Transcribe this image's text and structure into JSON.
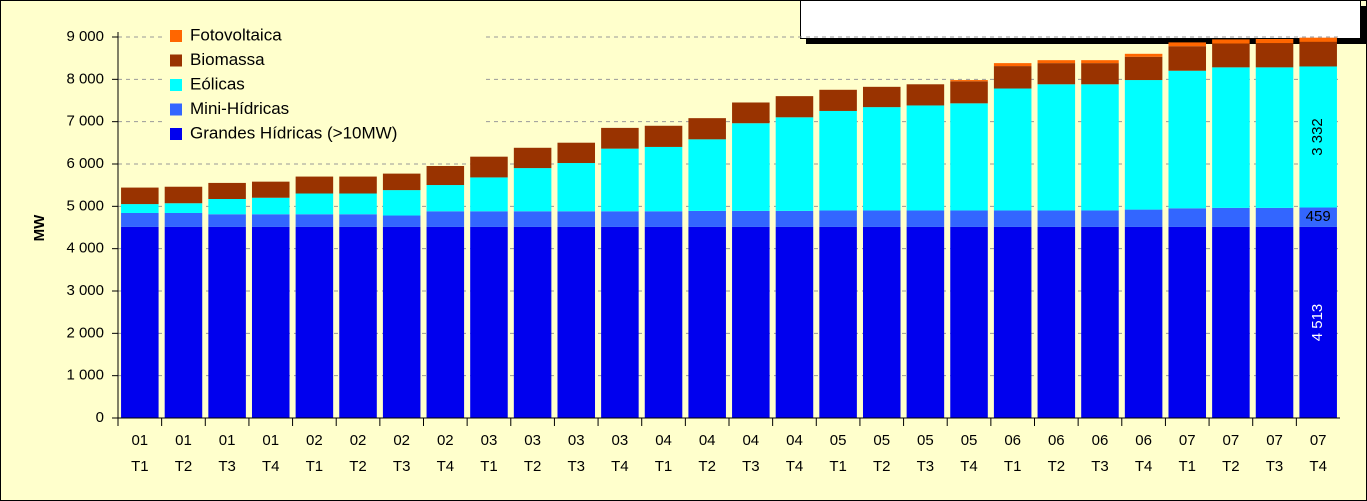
{
  "chart_data": {
    "type": "bar",
    "stacked": true,
    "ylabel": "MW",
    "categories": [
      [
        "01",
        "T1"
      ],
      [
        "01",
        "T2"
      ],
      [
        "01",
        "T3"
      ],
      [
        "01",
        "T4"
      ],
      [
        "02",
        "T1"
      ],
      [
        "02",
        "T2"
      ],
      [
        "02",
        "T3"
      ],
      [
        "02",
        "T4"
      ],
      [
        "03",
        "T1"
      ],
      [
        "03",
        "T2"
      ],
      [
        "03",
        "T3"
      ],
      [
        "03",
        "T4"
      ],
      [
        "04",
        "T1"
      ],
      [
        "04",
        "T2"
      ],
      [
        "04",
        "T3"
      ],
      [
        "04",
        "T4"
      ],
      [
        "05",
        "T1"
      ],
      [
        "05",
        "T2"
      ],
      [
        "05",
        "T3"
      ],
      [
        "05",
        "T4"
      ],
      [
        "06",
        "T1"
      ],
      [
        "06",
        "T2"
      ],
      [
        "06",
        "T3"
      ],
      [
        "06",
        "T4"
      ],
      [
        "07",
        "T1"
      ],
      [
        "07",
        "T2"
      ],
      [
        "07",
        "T3"
      ],
      [
        "07",
        "T4"
      ]
    ],
    "series": [
      {
        "name": "Grandes Hídricas (>10MW)",
        "color": "#0000ee",
        "values": [
          4513,
          4513,
          4513,
          4513,
          4513,
          4513,
          4513,
          4513,
          4513,
          4513,
          4513,
          4513,
          4513,
          4513,
          4513,
          4513,
          4513,
          4513,
          4513,
          4513,
          4513,
          4513,
          4513,
          4513,
          4513,
          4513,
          4513,
          4513
        ],
        "value_labels": [
          null,
          null,
          null,
          null,
          null,
          null,
          null,
          null,
          null,
          null,
          null,
          null,
          null,
          null,
          null,
          null,
          null,
          null,
          null,
          null,
          null,
          null,
          null,
          null,
          null,
          null,
          null,
          "4 513"
        ]
      },
      {
        "name": "Mini-Hídricas",
        "color": "#3366ff",
        "values": [
          330,
          330,
          300,
          300,
          300,
          300,
          270,
          370,
          370,
          370,
          370,
          370,
          370,
          380,
          380,
          380,
          390,
          390,
          390,
          390,
          390,
          390,
          390,
          410,
          440,
          450,
          450,
          459
        ],
        "value_labels": [
          null,
          null,
          null,
          null,
          null,
          null,
          null,
          null,
          null,
          null,
          null,
          null,
          null,
          null,
          null,
          null,
          null,
          null,
          null,
          null,
          null,
          null,
          null,
          null,
          null,
          null,
          null,
          "459"
        ]
      },
      {
        "name": "Eólicas",
        "color": "#00ffff",
        "values": [
          210,
          230,
          360,
          390,
          490,
          490,
          600,
          620,
          800,
          1020,
          1140,
          1480,
          1520,
          1690,
          2070,
          2210,
          2350,
          2440,
          2480,
          2530,
          2880,
          2980,
          2980,
          3060,
          3250,
          3320,
          3320,
          3332
        ],
        "value_labels": [
          null,
          null,
          null,
          null,
          null,
          null,
          null,
          null,
          null,
          null,
          null,
          null,
          null,
          null,
          null,
          null,
          null,
          null,
          null,
          null,
          null,
          null,
          null,
          null,
          null,
          null,
          null,
          "3 332"
        ]
      },
      {
        "name": "Biomassa",
        "color": "#993300",
        "values": [
          390,
          390,
          380,
          380,
          400,
          400,
          390,
          450,
          490,
          480,
          480,
          490,
          500,
          500,
          490,
          500,
          500,
          480,
          500,
          520,
          530,
          500,
          500,
          550,
          580,
          560,
          570,
          580
        ]
      },
      {
        "name": "Fotovoltaica",
        "color": "#ff6600",
        "values": [
          0,
          0,
          0,
          0,
          0,
          0,
          0,
          0,
          0,
          0,
          0,
          0,
          0,
          0,
          0,
          0,
          0,
          0,
          0,
          30,
          70,
          70,
          70,
          70,
          90,
          100,
          100,
          100
        ]
      }
    ],
    "ylim": [
      0,
      9000
    ],
    "yticks": [
      0,
      {
        "value": 1000,
        "label": "1 000"
      },
      {
        "value": 2000,
        "label": "2 000"
      },
      {
        "value": 3000,
        "label": "3 000"
      },
      {
        "value": 4000,
        "label": "4 000"
      },
      {
        "value": 5000,
        "label": "5 000"
      },
      {
        "value": 6000,
        "label": "6 000"
      },
      {
        "value": 7000,
        "label": "7 000"
      },
      {
        "value": 8000,
        "label": "8 000"
      },
      {
        "value": 9000,
        "label": "9 000"
      }
    ],
    "grid": true,
    "legend": "top-left"
  }
}
